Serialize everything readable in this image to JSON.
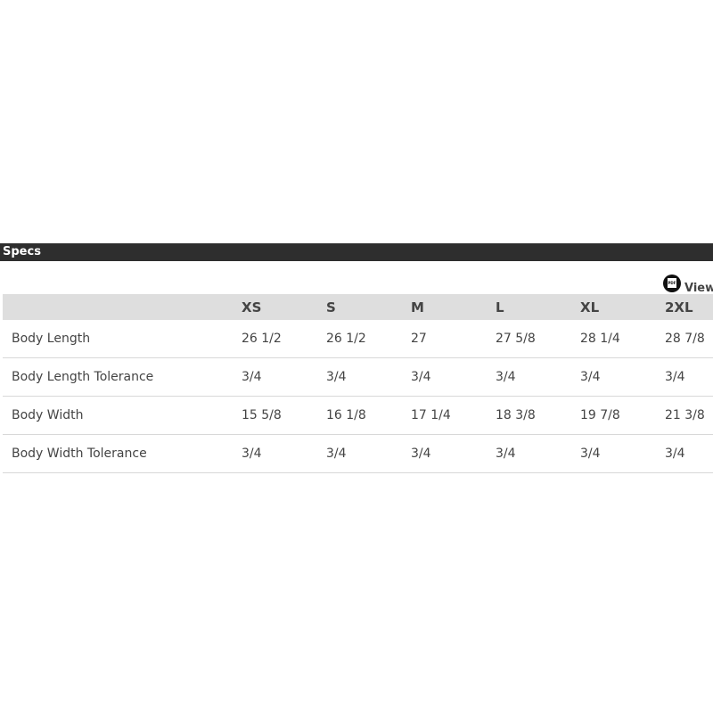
{
  "section_title": "Specs",
  "pdf_link": {
    "icon": "pdf-icon",
    "icon_text": "PDF",
    "label": "View"
  },
  "table": {
    "headers": [
      "",
      "XS",
      "S",
      "M",
      "L",
      "XL",
      "2XL"
    ],
    "rows": [
      {
        "label": "Body Length",
        "values": [
          "26 1/2",
          "26 1/2",
          "27",
          "27 5/8",
          "28 1/4",
          "28 7/8"
        ]
      },
      {
        "label": "Body Length Tolerance",
        "values": [
          "3/4",
          "3/4",
          "3/4",
          "3/4",
          "3/4",
          "3/4"
        ]
      },
      {
        "label": "Body Width",
        "values": [
          "15 5/8",
          "16 1/8",
          "17 1/4",
          "18 3/8",
          "19 7/8",
          "21 3/8"
        ]
      },
      {
        "label": "Body Width Tolerance",
        "values": [
          "3/4",
          "3/4",
          "3/4",
          "3/4",
          "3/4",
          "3/4"
        ]
      }
    ]
  }
}
